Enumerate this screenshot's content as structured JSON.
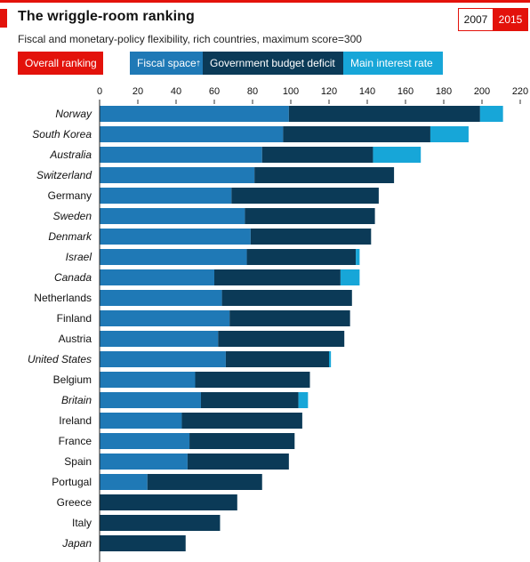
{
  "header": {
    "title": "The wriggle-room ranking",
    "subtitle": "Fiscal and monetary-policy flexibility, rich countries, maximum score=300"
  },
  "year_toggle": {
    "year_a": "2007",
    "year_b": "2015",
    "selected": "2015"
  },
  "controls": {
    "overall": "Overall ranking",
    "fiscal": "Fiscal space",
    "fiscal_mark": "†",
    "deficit": "Government budget deficit",
    "rate": "Main interest rate"
  },
  "colors": {
    "accent": "#e3120b",
    "fiscal": "#1f79b6",
    "deficit": "#0b3a57",
    "rate": "#17a6d8"
  },
  "chart_data": {
    "type": "bar",
    "orientation": "horizontal",
    "stacked": true,
    "xlim": [
      0,
      220
    ],
    "xticks": [
      0,
      20,
      40,
      60,
      80,
      100,
      120,
      140,
      160,
      180,
      200,
      220
    ],
    "grid": false,
    "categories": [
      "Norway",
      "South Korea",
      "Australia",
      "Switzerland",
      "Germany",
      "Sweden",
      "Denmark",
      "Israel",
      "Canada",
      "Netherlands",
      "Finland",
      "Austria",
      "United States",
      "Belgium",
      "Britain",
      "Ireland",
      "France",
      "Spain",
      "Portugal",
      "Greece",
      "Italy",
      "Japan"
    ],
    "italic": [
      true,
      true,
      true,
      true,
      false,
      true,
      true,
      true,
      true,
      false,
      false,
      false,
      true,
      false,
      true,
      false,
      false,
      false,
      false,
      false,
      false,
      true
    ],
    "series": [
      {
        "name": "Fiscal space†",
        "values": [
          99,
          96,
          85,
          81,
          69,
          76,
          79,
          77,
          60,
          64,
          68,
          62,
          66,
          50,
          53,
          43,
          47,
          46,
          25,
          0,
          0,
          0
        ]
      },
      {
        "name": "Government budget deficit",
        "values": [
          100,
          77,
          58,
          73,
          77,
          68,
          63,
          57,
          66,
          68,
          63,
          66,
          54,
          60,
          51,
          63,
          55,
          53,
          60,
          72,
          63,
          45
        ]
      },
      {
        "name": "Main interest rate",
        "values": [
          12,
          20,
          25,
          0,
          0,
          0,
          0,
          2,
          10,
          0,
          0,
          0,
          1,
          0,
          5,
          0,
          0,
          0,
          0,
          0,
          0,
          0
        ]
      }
    ]
  }
}
